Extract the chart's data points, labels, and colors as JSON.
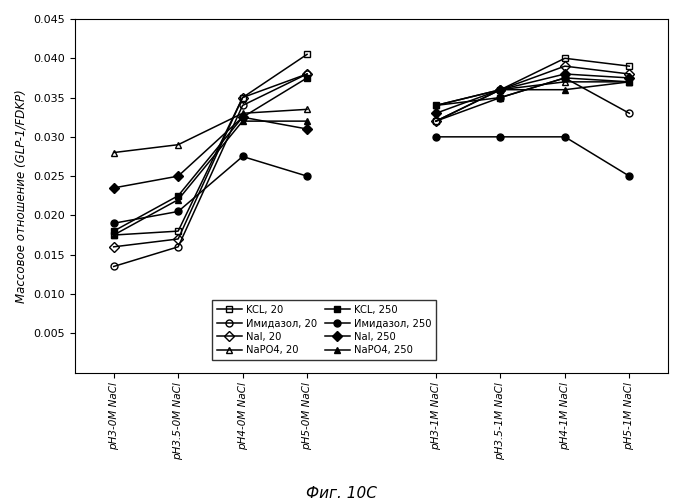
{
  "x_labels_group1": [
    "pH3-0M NaCl",
    "pH3.5-0M NaCl",
    "pH4-0M NaCl",
    "pH5-0M NaCl"
  ],
  "x_labels_group2": [
    "pH3-1M NaCl",
    "pH3.5-1M NaCl",
    "pH4-1M NaCl",
    "pH5-1M NaCl"
  ],
  "series": [
    {
      "label": "KCL, 20",
      "marker": "s",
      "fillstyle": "none",
      "color": "#000000",
      "values_g1": [
        0.0175,
        0.018,
        0.035,
        0.0405
      ],
      "values_g2": [
        0.032,
        0.036,
        0.04,
        0.039
      ]
    },
    {
      "label": "NaI, 20",
      "marker": "D",
      "fillstyle": "none",
      "color": "#000000",
      "values_g1": [
        0.016,
        0.017,
        0.035,
        0.038
      ],
      "values_g2": [
        0.032,
        0.036,
        0.039,
        0.038
      ]
    },
    {
      "label": "KCL, 250",
      "marker": "s",
      "fillstyle": "full",
      "color": "#000000",
      "values_g1": [
        0.018,
        0.0225,
        0.0325,
        0.0375
      ],
      "values_g2": [
        0.034,
        0.035,
        0.0375,
        0.037
      ]
    },
    {
      "label": "NaI, 250",
      "marker": "D",
      "fillstyle": "full",
      "color": "#000000",
      "values_g1": [
        0.0235,
        0.025,
        0.0325,
        0.031
      ],
      "values_g2": [
        0.033,
        0.036,
        0.038,
        0.0375
      ]
    },
    {
      "label": "Имидазол, 20",
      "marker": "o",
      "fillstyle": "none",
      "color": "#000000",
      "values_g1": [
        0.0135,
        0.016,
        0.034,
        0.038
      ],
      "values_g2": [
        0.032,
        0.035,
        0.0375,
        0.033
      ]
    },
    {
      "label": "NaPO4, 20",
      "marker": "^",
      "fillstyle": "none",
      "color": "#000000",
      "values_g1": [
        0.028,
        0.029,
        0.033,
        0.0335
      ],
      "values_g2": [
        0.034,
        0.036,
        0.037,
        0.037
      ]
    },
    {
      "label": "Имидазол, 250",
      "marker": "o",
      "fillstyle": "full",
      "color": "#000000",
      "values_g1": [
        0.019,
        0.0205,
        0.0275,
        0.025
      ],
      "values_g2": [
        0.03,
        0.03,
        0.03,
        0.025
      ]
    },
    {
      "label": "NaPO4, 250",
      "marker": "^",
      "fillstyle": "full",
      "color": "#000000",
      "values_g1": [
        0.0175,
        0.022,
        0.032,
        0.032
      ],
      "values_g2": [
        0.034,
        0.036,
        0.036,
        0.037
      ]
    }
  ],
  "ylabel": "Массовое отношение (GLP-1/FDKP)",
  "caption": "Фиг. 10C",
  "ylim": [
    0,
    0.045
  ],
  "yticks": [
    0.005,
    0.01,
    0.015,
    0.02,
    0.025,
    0.03,
    0.035,
    0.04,
    0.045
  ],
  "background_color": "#ffffff",
  "legend_col1": [
    "KCL, 20",
    "NaI, 20",
    "KCL, 250",
    "NaI, 250"
  ],
  "legend_col2": [
    "Имидазол, 20",
    "NaPO4, 20",
    "Имидазол, 250",
    "NaPO4, 250"
  ]
}
